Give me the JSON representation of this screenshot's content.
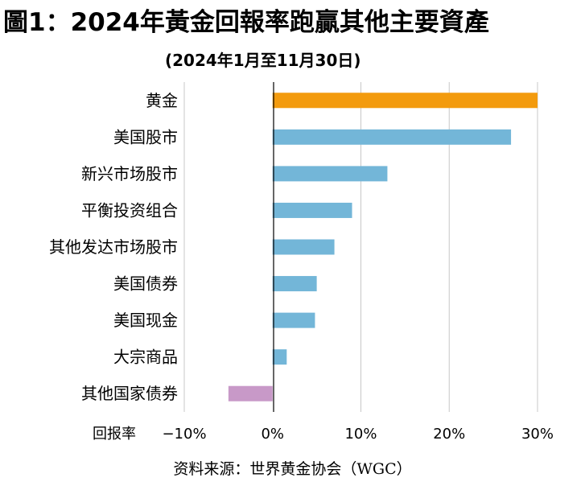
{
  "title": "圖1：2024年黃金回報率跑贏其他主要資產",
  "subtitle": "(2024年1月至11月30日)",
  "source": "资料来源：世界黄金协会（WGC）",
  "chart_data": {
    "type": "bar",
    "orientation": "horizontal",
    "xlabel": "回报率",
    "xlim": [
      -10,
      30
    ],
    "xticks": [
      -10,
      0,
      10,
      20,
      30
    ],
    "xtick_labels": [
      "−10%",
      "0%",
      "10%",
      "20%",
      "30%"
    ],
    "grid": true,
    "categories": [
      "黄金",
      "美国股市",
      "新兴市场股市",
      "平衡投资组合",
      "其他发达市场股市",
      "美国债券",
      "美国现金",
      "大宗商品",
      "其他国家债券"
    ],
    "values": [
      30.0,
      27.0,
      13.0,
      9.0,
      7.0,
      5.0,
      4.8,
      1.6,
      -5.0
    ],
    "colors": [
      "#F39B0E",
      "#73B6D8",
      "#73B6D8",
      "#73B6D8",
      "#73B6D8",
      "#73B6D8",
      "#73B6D8",
      "#73B6D8",
      "#C899C8"
    ]
  }
}
